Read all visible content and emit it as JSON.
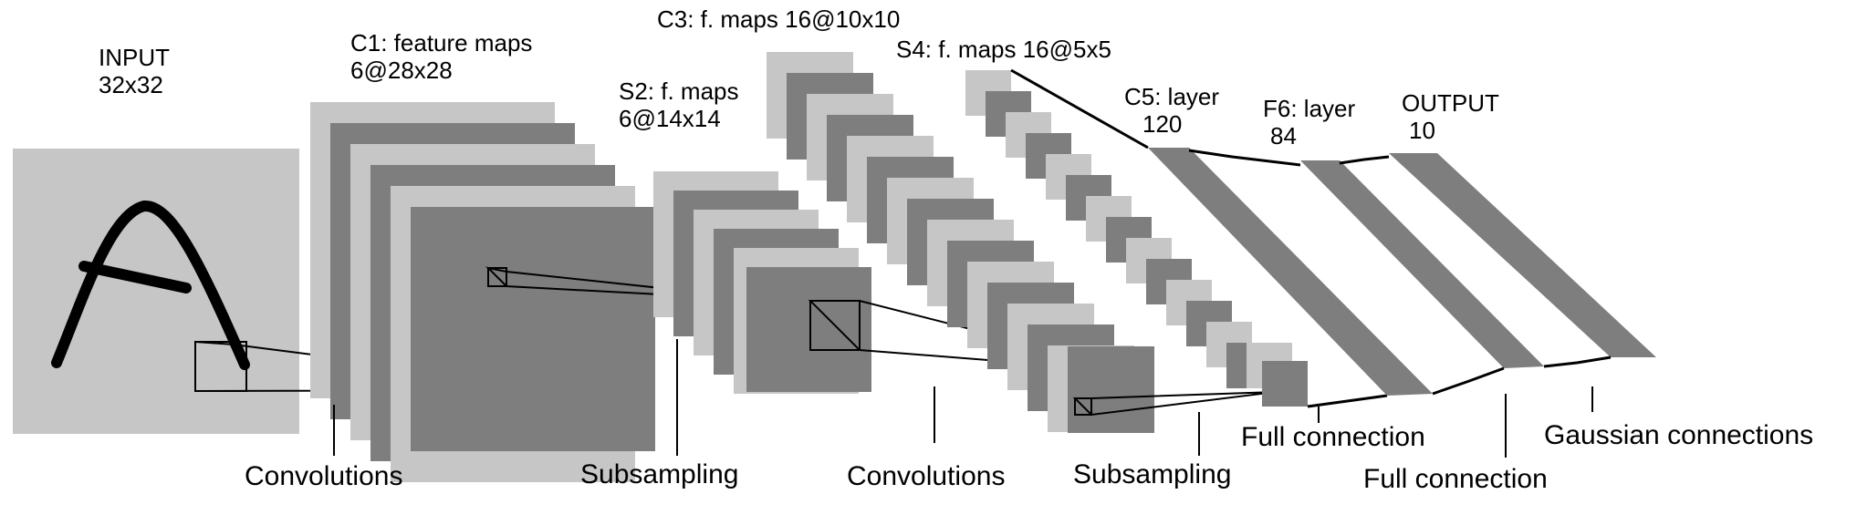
{
  "layers": {
    "input": {
      "name": "INPUT",
      "size": "32x32"
    },
    "c1": {
      "name": "C1: feature maps",
      "size": "6@28x28"
    },
    "s2": {
      "name": "S2: f. maps",
      "size": "6@14x14"
    },
    "c3": {
      "name": "C3: f. maps 16@10x10"
    },
    "s4": {
      "name": "S4: f. maps 16@5x5"
    },
    "c5": {
      "name": "C5: layer",
      "size": "120"
    },
    "f6": {
      "name": "F6: layer",
      "size": "84"
    },
    "output": {
      "name": "OUTPUT",
      "size": "10"
    }
  },
  "operations": {
    "conv1": "Convolutions",
    "sub1": "Subsampling",
    "conv2": "Convolutions",
    "sub2": "Subsampling",
    "full1": "Full connection",
    "full2": "Full connection",
    "gauss": "Gaussian connections"
  },
  "colors": {
    "light": "#c6c6c6",
    "dark": "#7e7e7e",
    "line": "#000000"
  },
  "input_glyph": "A"
}
